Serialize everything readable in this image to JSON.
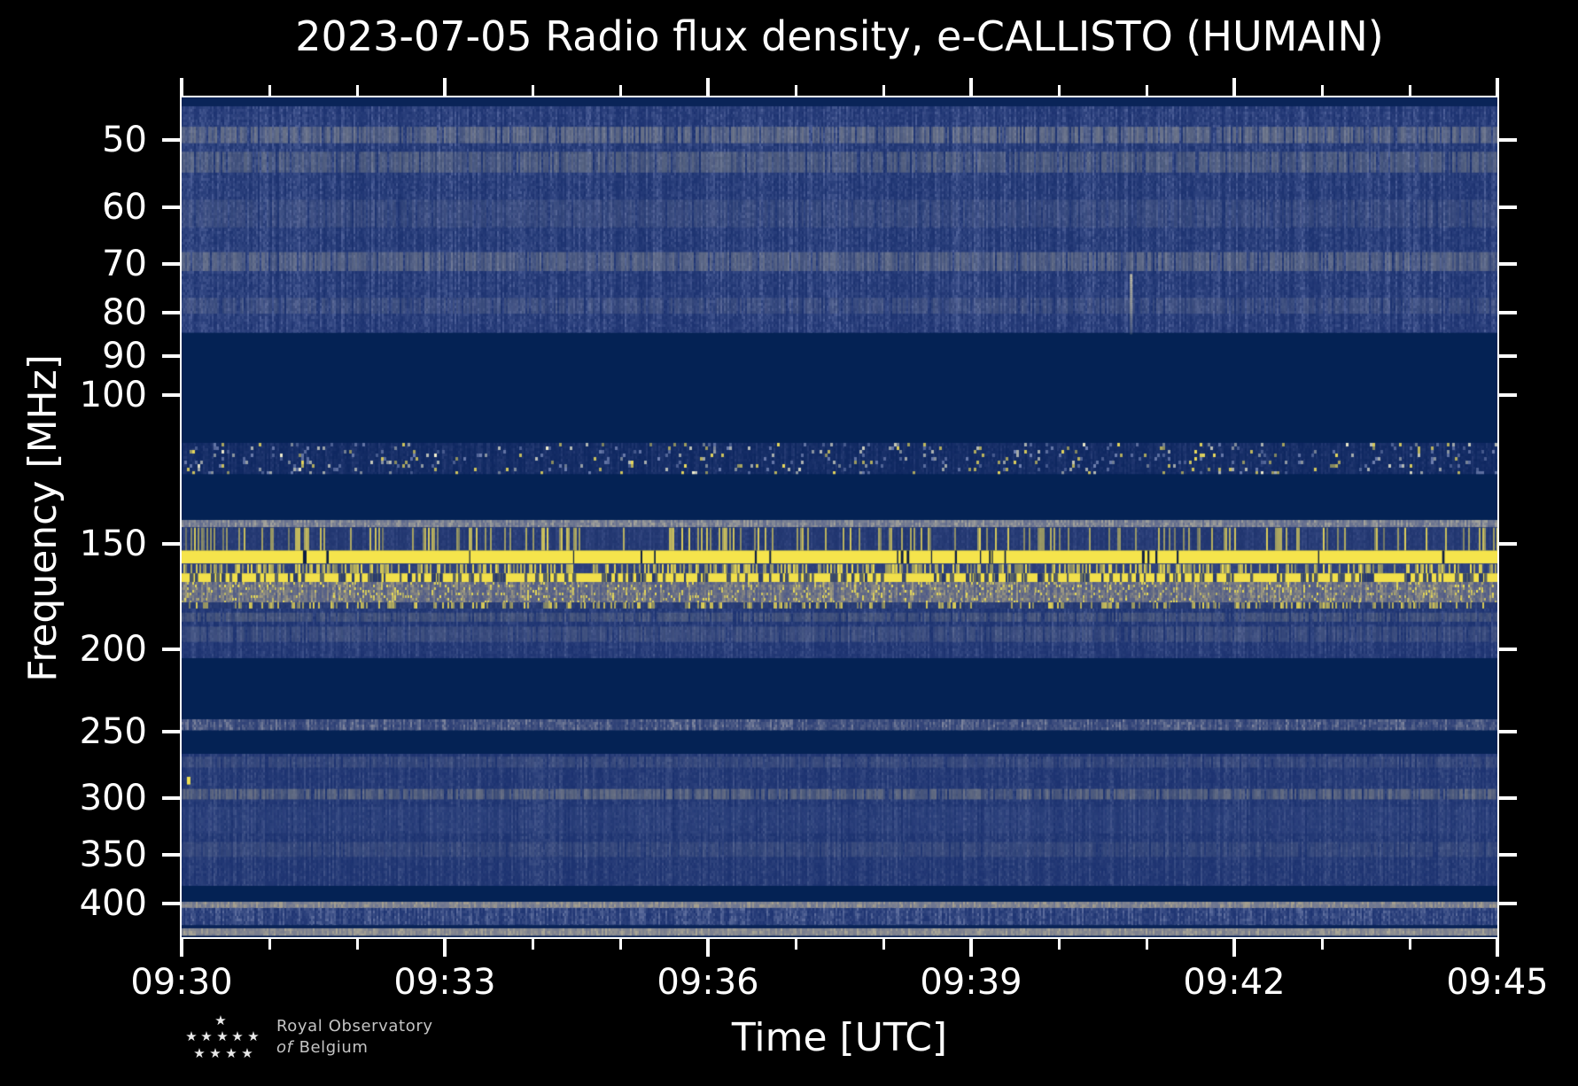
{
  "page": {
    "background": "#000000"
  },
  "chart_data": {
    "type": "heatmap",
    "subtype": "radio-spectrogram",
    "title": "2023-07-05 Radio flux density, e-CALLISTO (HUMAIN)",
    "xlabel": "Time [UTC]",
    "ylabel": "Frequency [MHz]",
    "x_axis": {
      "start": "09:30",
      "end": "09:45",
      "duration_min": 15,
      "major_tick_every_min": 3,
      "minor_tick_every_min": 1,
      "major_ticks": [
        "09:30",
        "09:33",
        "09:36",
        "09:39",
        "09:42",
        "09:45"
      ]
    },
    "y_axis": {
      "scale": "log",
      "inverted": true,
      "top_mhz": 44.5,
      "bottom_mhz": 438,
      "tick_labels": [
        50,
        60,
        70,
        80,
        90,
        100,
        150,
        200,
        250,
        300,
        350,
        400
      ]
    },
    "palette": {
      "blank_navy": "#042254",
      "noise_base": "#1c3270",
      "noise_light": "#4d5f95",
      "tan": "#9a9a94",
      "bright_yellow": "#f5e44c",
      "axis_white": "#ffffff"
    },
    "bands": [
      {
        "mhz": [
          44.5,
          45.6
        ],
        "style": "flat",
        "color": "#0a2458"
      },
      {
        "mhz": [
          45.6,
          84.5
        ],
        "style": "noise",
        "base": "#1c3270",
        "light": "#50629a",
        "intensity": 0.62,
        "rows": [
          {
            "mhz": [
              48.2,
              50.4
            ],
            "color": "#9a9a94",
            "alpha": 0.6
          },
          {
            "mhz": [
              51.6,
              54.6
            ],
            "color": "#97988f",
            "alpha": 0.45
          },
          {
            "mhz": [
              58.8,
              63.4
            ],
            "color": "#8e929c",
            "alpha": 0.22
          },
          {
            "mhz": [
              67.8,
              71.4
            ],
            "color": "#9a9a94",
            "alpha": 0.5
          },
          {
            "mhz": [
              76.8,
              80.2
            ],
            "color": "#8e929c",
            "alpha": 0.28
          }
        ]
      },
      {
        "mhz": [
          84.5,
          114.2
        ],
        "style": "flat",
        "color": "#042254"
      },
      {
        "mhz": [
          114.2,
          124.2
        ],
        "style": "speckle",
        "base": "#0e2760",
        "density": 0.1,
        "colors": [
          {
            "c": "#6f7fae",
            "w": 0.45
          },
          {
            "c": "#b9bdb6",
            "w": 0.2
          },
          {
            "c": "#e8d85c",
            "w": 0.25
          },
          {
            "c": "#f6f2d0",
            "w": 0.1
          }
        ]
      },
      {
        "mhz": [
          124.2,
          140.8
        ],
        "style": "flat",
        "color": "#042254"
      },
      {
        "mhz": [
          140.8,
          143.6
        ],
        "style": "noise",
        "base": "#5f6a8e",
        "light": "#a3a29a",
        "intensity": 0.85
      },
      {
        "mhz": [
          143.6,
          152.8
        ],
        "style": "yellow_streaks",
        "base": "#20356f",
        "streak": "#dfd05a",
        "density": 0.22
      },
      {
        "mhz": [
          152.8,
          158.6
        ],
        "style": "yellow_solid",
        "color": "#f5e44c",
        "gap": "#0c1d46",
        "gaps": 24
      },
      {
        "mhz": [
          158.6,
          162.6
        ],
        "style": "yellow_streaks",
        "base": "#2a3d78",
        "streak": "#ecdc50",
        "density": 0.45
      },
      {
        "mhz": [
          162.6,
          166.6
        ],
        "style": "yellow_broken",
        "color": "#f2e04a",
        "gap": "#23366e",
        "density": 0.34
      },
      {
        "mhz": [
          166.6,
          176.0
        ],
        "style": "yellow_speckle",
        "base": "#4e5a88",
        "light": "#a29c7e",
        "yellow": "#eadc55",
        "density": 0.18
      },
      {
        "mhz": [
          176.0,
          179.2
        ],
        "style": "yellow_streaks",
        "base": "#22366f",
        "streak": "#e0d055",
        "density": 0.3
      },
      {
        "mhz": [
          179.2,
          205.0
        ],
        "style": "noise",
        "base": "#1c3270",
        "light": "#4d5f95",
        "intensity": 0.5,
        "rows": [
          {
            "mhz": [
              181.0,
              185.5
            ],
            "color": "#93948e",
            "alpha": 0.38
          },
          {
            "mhz": [
              188.0,
              196.0
            ],
            "color": "#8e929c",
            "alpha": 0.3
          }
        ]
      },
      {
        "mhz": [
          205,
          242
        ],
        "style": "flat",
        "color": "#042254"
      },
      {
        "mhz": [
          242,
          249.5
        ],
        "style": "noise",
        "base": "#2a3d74",
        "light": "#7d849c",
        "intensity": 0.7
      },
      {
        "mhz": [
          249.5,
          266
        ],
        "style": "flat",
        "color": "#042254"
      },
      {
        "mhz": [
          266,
          381
        ],
        "style": "noise",
        "base": "#1c3270",
        "light": "#46588c",
        "intensity": 0.55,
        "rows": [
          {
            "mhz": [
              268,
              276
            ],
            "color": "#8e929c",
            "alpha": 0.25
          },
          {
            "mhz": [
              292.5,
              301
            ],
            "color": "#9a988c",
            "alpha": 0.55
          },
          {
            "mhz": [
              307,
              330
            ],
            "color": "#53659a",
            "alpha": 0.22
          },
          {
            "mhz": [
              338,
              352
            ],
            "color": "#8e929c",
            "alpha": 0.22
          }
        ]
      },
      {
        "mhz": [
          381,
          398.5
        ],
        "style": "flat",
        "color": "#042254"
      },
      {
        "mhz": [
          398.5,
          404.5
        ],
        "style": "noise",
        "base": "#6a7390",
        "light": "#a49e8e",
        "intensity": 0.85
      },
      {
        "mhz": [
          404.5,
          424
        ],
        "style": "noise",
        "base": "#1e3472",
        "light": "#5c6c9c",
        "intensity": 0.78
      },
      {
        "mhz": [
          424,
          428.5
        ],
        "style": "flat",
        "color": "#0a2458"
      },
      {
        "mhz": [
          428.5,
          436.5
        ],
        "style": "noise",
        "base": "#767b8e",
        "light": "#aaa696",
        "intensity": 0.8
      },
      {
        "mhz": [
          436.5,
          438
        ],
        "style": "flat",
        "color": "#0a2254"
      }
    ],
    "features": [
      {
        "type": "vstreak",
        "minute": 10.82,
        "mhz": [
          72,
          84.5
        ],
        "color": "#d9d2ac",
        "width": 3
      },
      {
        "type": "speck",
        "minute": 0.06,
        "mhz": [
          283,
          289
        ],
        "color": "#f0e050",
        "width": 4
      }
    ]
  },
  "logo": {
    "line1": "Royal Observatory",
    "line2_prefix": "of",
    "line2_rest": "Belgium",
    "stars": [
      [
        249,
        1152
      ],
      [
        216,
        1170
      ],
      [
        233,
        1170
      ],
      [
        251,
        1170
      ],
      [
        268,
        1170
      ],
      [
        286,
        1170
      ],
      [
        225,
        1189
      ],
      [
        243,
        1189
      ],
      [
        261,
        1189
      ],
      [
        279,
        1189
      ]
    ],
    "star_glyph": "★"
  }
}
